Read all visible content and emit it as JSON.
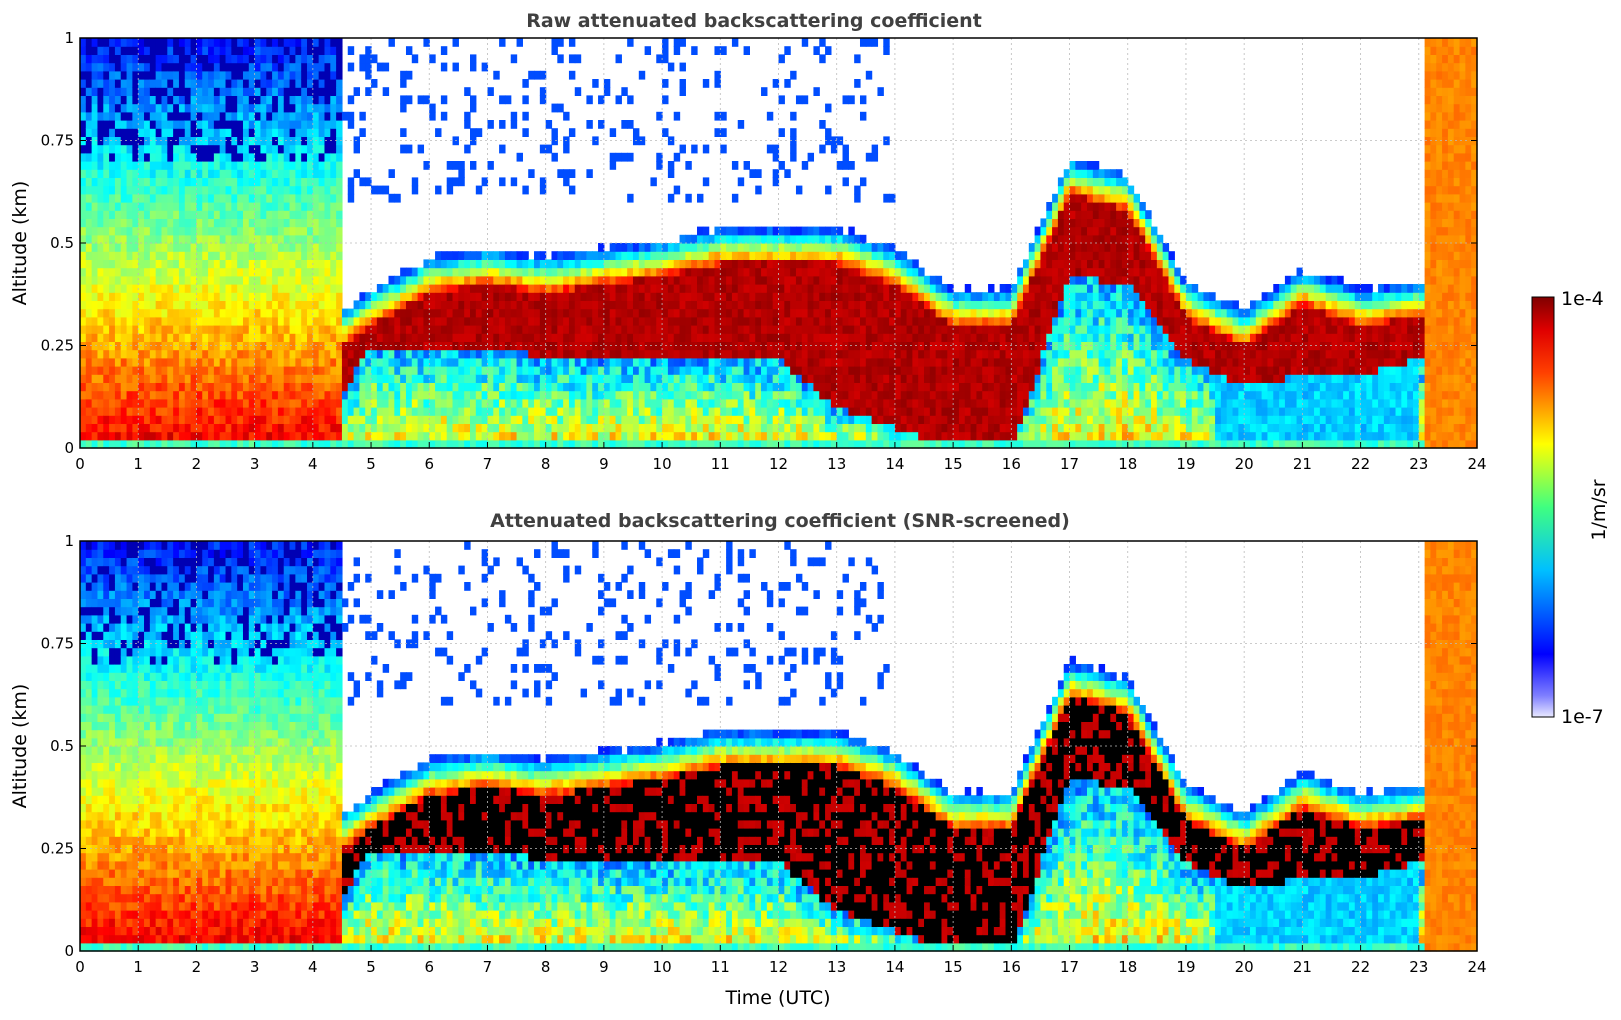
{
  "chart_data": [
    {
      "type": "heatmap",
      "title": "Raw attenuated backscattering coefficient",
      "xlabel": "",
      "ylabel": "Altitude (km)",
      "xlim": [
        0,
        24
      ],
      "ylim": [
        0,
        1
      ],
      "xticks": [
        "0",
        "1",
        "2",
        "3",
        "4",
        "5",
        "6",
        "7",
        "8",
        "9",
        "10",
        "11",
        "12",
        "13",
        "14",
        "15",
        "16",
        "17",
        "18",
        "19",
        "20",
        "21",
        "22",
        "23",
        "24"
      ],
      "yticks": [
        "0",
        "0.25",
        "0.5",
        "0.75",
        "1"
      ],
      "grid": true,
      "snr_screened": false,
      "layer_top_km": [
        [
          0,
          0.2
        ],
        [
          1,
          0.22
        ],
        [
          2,
          0.22
        ],
        [
          3,
          0.22
        ],
        [
          4,
          0.2
        ],
        [
          5,
          0.3
        ],
        [
          6,
          0.38
        ],
        [
          7,
          0.4
        ],
        [
          8,
          0.38
        ],
        [
          9,
          0.4
        ],
        [
          10,
          0.42
        ],
        [
          11,
          0.45
        ],
        [
          12,
          0.45
        ],
        [
          13,
          0.45
        ],
        [
          14,
          0.4
        ],
        [
          15,
          0.3
        ],
        [
          16,
          0.3
        ],
        [
          17,
          0.62
        ],
        [
          18,
          0.58
        ],
        [
          19,
          0.32
        ],
        [
          20,
          0.25
        ],
        [
          21,
          0.35
        ],
        [
          22,
          0.3
        ],
        [
          23,
          0.32
        ]
      ],
      "layer_base_km": [
        [
          0,
          0.02
        ],
        [
          1,
          0.02
        ],
        [
          2,
          0.02
        ],
        [
          3,
          0.02
        ],
        [
          4,
          0.02
        ],
        [
          5,
          0.25
        ],
        [
          6,
          0.25
        ],
        [
          7,
          0.25
        ],
        [
          8,
          0.22
        ],
        [
          9,
          0.22
        ],
        [
          10,
          0.22
        ],
        [
          11,
          0.22
        ],
        [
          12,
          0.22
        ],
        [
          13,
          0.1
        ],
        [
          14,
          0.05
        ],
        [
          15,
          0.0
        ],
        [
          16,
          0.0
        ],
        [
          17,
          0.42
        ],
        [
          18,
          0.4
        ],
        [
          19,
          0.22
        ],
        [
          20,
          0.15
        ],
        [
          21,
          0.18
        ],
        [
          22,
          0.18
        ],
        [
          23,
          0.22
        ]
      ]
    },
    {
      "type": "heatmap",
      "title": "Attenuated backscattering coefficient (SNR-screened)",
      "xlabel": "Time (UTC)",
      "ylabel": "Altitude (km)",
      "xlim": [
        0,
        24
      ],
      "ylim": [
        0,
        1
      ],
      "xticks": [
        "0",
        "1",
        "2",
        "3",
        "4",
        "5",
        "6",
        "7",
        "8",
        "9",
        "10",
        "11",
        "12",
        "13",
        "14",
        "15",
        "16",
        "17",
        "18",
        "19",
        "20",
        "21",
        "22",
        "23",
        "24"
      ],
      "yticks": [
        "0",
        "0.25",
        "0.5",
        "0.75",
        "1"
      ],
      "grid": true,
      "snr_screened": true,
      "saturated_color": "#000000"
    }
  ],
  "colorbar": {
    "label": "1/m/sr",
    "max_label": "1e-4",
    "min_label": "1e-7",
    "colormap": "jet",
    "colors": [
      "#e8e8ff",
      "#0000ff",
      "#00ffff",
      "#ffff00",
      "#ff0000",
      "#800000"
    ]
  }
}
